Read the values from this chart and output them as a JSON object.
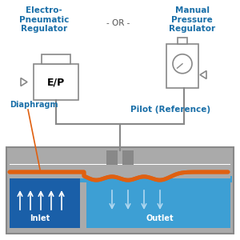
{
  "bg_color": "#ffffff",
  "title_left": "Electro-\nPneumatic\nRegulator",
  "title_center": "- OR -",
  "title_right": "Manual\nPressure\nRegulator",
  "label_diaphragm": "Diaphragm",
  "label_pilot": "Pilot (Reference)",
  "label_inlet": "Inlet",
  "label_outlet": "Outlet",
  "ep_label": "E/P",
  "color_blue_dark": "#1a5fa8",
  "color_blue_light": "#3d9fd4",
  "color_orange": "#e06010",
  "color_gray": "#aaaaaa",
  "color_gray_dark": "#888888",
  "color_title": "#1a6fa8",
  "color_label": "#1a6fa8",
  "color_white": "#ffffff"
}
